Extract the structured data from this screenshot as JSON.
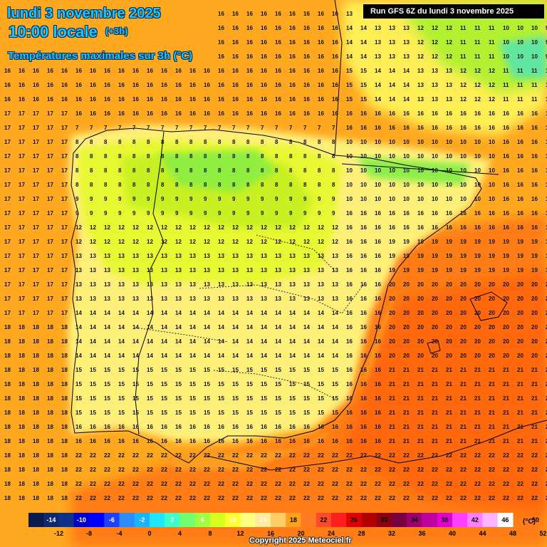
{
  "title": {
    "date": "lundi 3 novembre 2025",
    "local_time": "10:00 locale",
    "step": "(+3h)",
    "subtitle": "Températures maximales sur 3h (°C)"
  },
  "run_label": "Run GFS 6Z du lundi 3 novembre 2025",
  "copyright": "Copyright 2025 Meteociel.fr",
  "legend": {
    "unit": "(°C)",
    "top_labels": [
      "-14",
      "-10",
      "-6",
      "-2",
      "2",
      "6",
      "10",
      "14",
      "18",
      "22",
      "26",
      "30",
      "34",
      "38",
      "42",
      "46",
      "50"
    ],
    "bottom_labels": [
      "-12",
      "-8",
      "-4",
      "0",
      "4",
      "8",
      "12",
      "16",
      "20",
      "24",
      "28",
      "32",
      "36",
      "40",
      "44",
      "48",
      "52"
    ],
    "colors": [
      "#0a1a4a",
      "#0d2a6e",
      "#10308a",
      "#0000c8",
      "#0000ff",
      "#2040ff",
      "#2a8cff",
      "#19b4ff",
      "#1ee6ff",
      "#3cffc8",
      "#70ff70",
      "#a0ff40",
      "#d8ff20",
      "#ffff30",
      "#ffff80",
      "#ffeb9a",
      "#ffcc66",
      "#ffa020",
      "#ff7a20",
      "#ff4a2a",
      "#ff1e1e",
      "#e00000",
      "#b40000",
      "#8c0010",
      "#780040",
      "#9c0070",
      "#c000a0",
      "#e000d0",
      "#ff40ff",
      "#ff80ff",
      "#ffb4ff",
      "#ffffff"
    ]
  },
  "colors": {
    "title": "#19c8ff",
    "title_outline": "#0b2a57",
    "border_lines": "#000000",
    "sea_warm": "#ff9a18",
    "sea_hot": "#ff6a12",
    "land_mild": "#ffee88",
    "land_cool": "#c8f020",
    "land_cold": "#8cf040"
  }
}
